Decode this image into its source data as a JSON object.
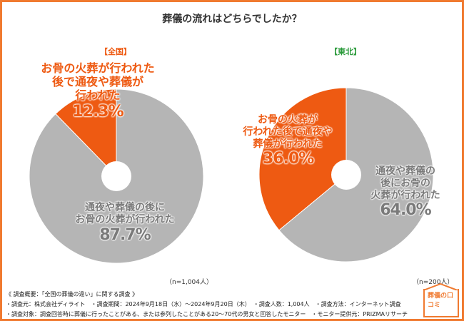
{
  "title": "葬儀の流れはどちらでしたか？",
  "colors": {
    "accent": "#ee5a12",
    "gray": "#b5b5b5",
    "frame": "#f07a30"
  },
  "chart_data": [
    {
      "type": "pie",
      "title": "【全国】",
      "n": "（n=1,004人）",
      "slices": [
        {
          "label": "お骨の火葬が行われた後で通夜や葬儀が行われた",
          "value": 12.3,
          "display": "12.3%",
          "color": "#ee5a12"
        },
        {
          "label": "通夜や葬儀の後にお骨の火葬が行われた",
          "value": 87.7,
          "display": "87.7%",
          "color": "#b5b5b5"
        }
      ]
    },
    {
      "type": "pie",
      "title": "【東北】",
      "n": "（n=200人）",
      "slices": [
        {
          "label": "お骨の火葬が行われた後で通夜や葬儀が行われた",
          "value": 36.0,
          "display": "36.0%",
          "color": "#ee5a12"
        },
        {
          "label": "通夜や葬儀の後にお骨の火葬が行われた",
          "value": 64.0,
          "display": "64.0%",
          "color": "#b5b5b5"
        }
      ]
    }
  ],
  "labels": {
    "l_or": [
      "お骨の火葬が行われた",
      "後で通夜や葬儀が",
      "行われた"
    ],
    "l_gr": [
      "通夜や葬儀の後に",
      "お骨の火葬が行われた"
    ],
    "r_or": [
      "お骨の火葬が",
      "行われた後で通夜や",
      "葬儀が行われた"
    ],
    "r_gr": [
      "通夜や葬儀の",
      "後にお骨の",
      "火葬が行われた"
    ]
  },
  "footer": [
    "《 調査概要：「全国の葬儀の違い」に関する調査 》",
    "・調査元：株式会社ディライト　・調査期間：2024年9月18日（水）～2024年9月20日（木）　・調査人数：1,004人　・調査方法：インターネット調査",
    "・調査対象：調査回答時に葬儀に行ったことがある、または参列したことがある20～70代の男女と回答したモニター　・モニター提供元：PRIZMAリサーチ"
  ],
  "logo": "葬儀の口コミ"
}
